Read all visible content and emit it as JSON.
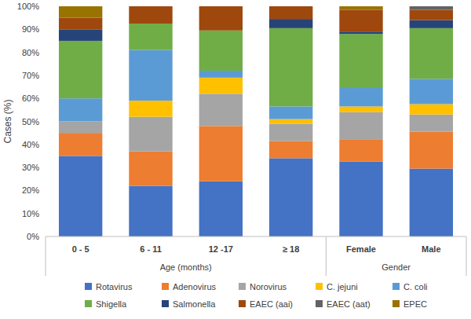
{
  "chart_data": {
    "type": "bar",
    "stacked": true,
    "grid": false,
    "legend": "bottom",
    "y_label": "Cases (%)",
    "categories": [
      "0 - 5",
      "6 - 11",
      "12 -17",
      "≥ 18",
      "Female",
      "Male"
    ],
    "x_groups": [
      {
        "label": "Age (months)",
        "count": 4
      },
      {
        "label": "Gender",
        "count": 2
      }
    ],
    "ylim": [
      0,
      100
    ],
    "yticks": [
      {
        "value": 0,
        "label": "0%"
      },
      {
        "value": 10,
        "label": "10%"
      },
      {
        "value": 20,
        "label": "20%"
      },
      {
        "value": 30,
        "label": "30%"
      },
      {
        "value": 40,
        "label": "40%"
      },
      {
        "value": 50,
        "label": "50%"
      },
      {
        "value": 60,
        "label": "60%"
      },
      {
        "value": 70,
        "label": "70%"
      },
      {
        "value": 80,
        "label": "80%"
      },
      {
        "value": 90,
        "label": "90%"
      },
      {
        "value": 100,
        "label": "100%"
      }
    ],
    "series": [
      {
        "name": "Rotavirus",
        "color": "#4472c4",
        "values": [
          35,
          22,
          24,
          34,
          32.5,
          29.5
        ]
      },
      {
        "name": "Adenovirus",
        "color": "#ed7d31",
        "values": [
          10,
          15,
          24,
          7.5,
          9.5,
          16
        ]
      },
      {
        "name": "Norovirus",
        "color": "#a5a5a5",
        "values": [
          5,
          15,
          14,
          7.5,
          12,
          7.5
        ]
      },
      {
        "name": "C. jejuni",
        "color": "#ffc000",
        "values": [
          0,
          7,
          7,
          2,
          2.5,
          4.5
        ]
      },
      {
        "name": "C. coli",
        "color": "#5b9bd5",
        "values": [
          10,
          22,
          3,
          5.5,
          8,
          11
        ]
      },
      {
        "name": "Shigella",
        "color": "#70ad47",
        "values": [
          25,
          11.5,
          17.5,
          34,
          23.5,
          22
        ]
      },
      {
        "name": "Salmonella",
        "color": "#264478",
        "values": [
          5,
          0,
          0,
          4,
          1,
          3.5
        ]
      },
      {
        "name": "EAEC (aai)",
        "color": "#9e480e",
        "values": [
          5,
          7.5,
          10.5,
          5.5,
          9.5,
          4.5
        ]
      },
      {
        "name": "EAEC (aat)",
        "color": "#636363",
        "values": [
          0,
          0,
          0,
          0,
          0,
          1.5
        ]
      },
      {
        "name": "EPEC",
        "color": "#997300",
        "values": [
          5,
          0,
          0,
          0,
          1.5,
          0
        ]
      }
    ]
  }
}
